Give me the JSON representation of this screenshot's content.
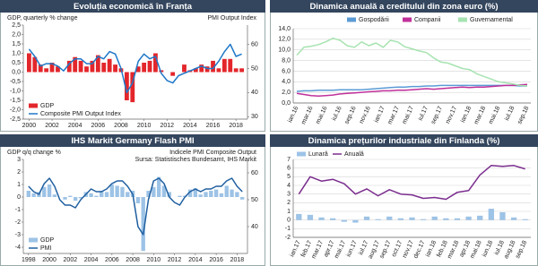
{
  "chart_data": [
    {
      "type": "combo",
      "title": "Evoluția economică în Franța",
      "ylabel": "GDP, quarterly % change",
      "y2label": "PMI Output Index",
      "legend": "lower left",
      "x": [
        2000,
        2000.5,
        2001,
        2001.5,
        2002,
        2002.5,
        2003,
        2003.5,
        2004,
        2004.5,
        2005,
        2005.5,
        2006,
        2006.5,
        2007,
        2007.5,
        2008,
        2008.5,
        2009,
        2009.5,
        2010,
        2010.5,
        2011,
        2011.5,
        2012,
        2012.5,
        2013,
        2013.5,
        2014,
        2014.5,
        2015,
        2015.5,
        2016,
        2016.5,
        2017,
        2017.5,
        2018,
        2018.5
      ],
      "xlim": [
        1999.5,
        2019
      ],
      "xticks": [
        2000,
        2002,
        2004,
        2006,
        2008,
        2010,
        2012,
        2014,
        2016,
        2018
      ],
      "ylim": [
        -2.5,
        2.5
      ],
      "yticks": [
        {
          "value": 2.5,
          "label": "2,5"
        },
        {
          "value": 2,
          "label": "2,0"
        },
        {
          "value": 1.5,
          "label": "1,5"
        },
        {
          "value": 1,
          "label": "1,0"
        },
        {
          "value": 0.5,
          "label": "0,5"
        },
        {
          "value": 0,
          "label": "0,0"
        },
        {
          "value": -0.5,
          "label": "-0,5"
        },
        {
          "value": -1,
          "label": "-1,0"
        },
        {
          "value": -1.5,
          "label": "-1,5"
        },
        {
          "value": -2,
          "label": "-2,0"
        },
        {
          "value": -2.5,
          "label": "-2,5"
        }
      ],
      "y2lim": [
        29,
        68
      ],
      "y2ticks": [
        30,
        40,
        50,
        60
      ],
      "grid": false,
      "series": [
        {
          "name": "GDP",
          "type": "bar",
          "color": "#e3262b",
          "values": [
            1.0,
            0.8,
            0.4,
            0.2,
            0.5,
            0.3,
            0.0,
            0.6,
            0.8,
            0.6,
            0.3,
            0.6,
            0.9,
            0.5,
            0.7,
            0.4,
            0.2,
            -1.5,
            -1.6,
            0.3,
            0.5,
            0.6,
            1.0,
            0.1,
            0.0,
            -0.2,
            0.0,
            0.4,
            0.1,
            0.2,
            0.4,
            0.3,
            0.6,
            0.2,
            0.7,
            0.7,
            0.2,
            0.2
          ]
        },
        {
          "name": "Composite PMI Output Index",
          "type": "line",
          "axis": "y2",
          "color": "#1f78c8",
          "values": [
            58,
            55,
            51,
            52,
            52,
            51,
            49,
            52,
            54,
            54,
            52,
            52,
            55,
            54,
            57,
            56,
            50,
            40,
            44,
            53,
            56,
            54,
            55,
            48,
            45,
            44,
            47,
            48,
            49,
            50,
            51,
            50,
            50,
            53,
            57,
            60,
            55,
            56
          ]
        }
      ]
    },
    {
      "type": "line",
      "title": "Dinamica anuală a creditului din zona euro (%)",
      "legend": "top",
      "categories": [
        "ian.16",
        null,
        "mar.16",
        null,
        "mai.16",
        null,
        "iul.16",
        null,
        "sep.16",
        null,
        "nov.16",
        null,
        "ian.17",
        null,
        "mar.17",
        null,
        "mai.17",
        null,
        "iul.17",
        null,
        "sep.17",
        null,
        "nov.17",
        null,
        "ian.18",
        null,
        "mar.18",
        null,
        "mai.18",
        null,
        "iul.18",
        null,
        "sep.18"
      ],
      "ylim": [
        0,
        14
      ],
      "yticks": [
        {
          "value": 0,
          "label": "0,0"
        },
        {
          "value": 2,
          "label": "2,0"
        },
        {
          "value": 4,
          "label": "4,0"
        },
        {
          "value": 6,
          "label": "6,0"
        },
        {
          "value": 8,
          "label": "8,0"
        },
        {
          "value": 10,
          "label": "10,0"
        },
        {
          "value": 12,
          "label": "12,0"
        },
        {
          "value": 14,
          "label": "14,0"
        }
      ],
      "grid": true,
      "series": [
        {
          "name": "Gospodării",
          "type": "line",
          "color": "#5b9bd5",
          "values": [
            2.2,
            2.3,
            2.3,
            2.4,
            2.4,
            2.4,
            2.5,
            2.5,
            2.5,
            2.5,
            2.6,
            2.7,
            2.8,
            2.9,
            3.0,
            3.0,
            3.1,
            3.1,
            3.2,
            3.2,
            3.3,
            3.3,
            3.3,
            3.3,
            3.3,
            3.3,
            3.3,
            3.3,
            3.3,
            3.3,
            3.3,
            3.2,
            3.2
          ]
        },
        {
          "name": "Companii",
          "type": "line",
          "color": "#c0309a",
          "values": [
            1.8,
            1.6,
            1.4,
            1.3,
            1.4,
            1.5,
            1.7,
            1.8,
            1.9,
            2.0,
            2.1,
            2.2,
            2.3,
            2.3,
            2.4,
            2.4,
            2.5,
            2.6,
            2.7,
            2.6,
            2.7,
            2.8,
            2.9,
            3.0,
            2.9,
            3.0,
            3.0,
            3.1,
            3.2,
            3.3,
            3.3,
            3.4,
            3.5
          ]
        },
        {
          "name": "Guvernamental",
          "type": "line",
          "color": "#a6e3b0",
          "values": [
            9.0,
            10.5,
            10.7,
            11.0,
            11.5,
            12.2,
            11.8,
            10.8,
            10.5,
            11.5,
            10.8,
            11.3,
            10.5,
            11.8,
            11.5,
            10.6,
            10.2,
            9.8,
            9.5,
            8.5,
            7.7,
            7.5,
            7.0,
            6.5,
            6.3,
            5.5,
            5.0,
            4.5,
            4.0,
            3.8,
            3.6,
            3.3,
            3.2
          ]
        }
      ]
    },
    {
      "type": "combo",
      "title": "IHS Markit Germany Flash PMI",
      "ylabel": "GDP q/q change %",
      "y2label": "Indicele PMI Composite Output",
      "note": "Sursa: Statistisches Bundesamt,  IHS Markit",
      "legend": "lower left",
      "x": [
        1998,
        1998.5,
        1999,
        1999.5,
        2000,
        2000.5,
        2001,
        2001.5,
        2002,
        2002.5,
        2003,
        2003.5,
        2004,
        2004.5,
        2005,
        2005.5,
        2006,
        2006.5,
        2007,
        2007.5,
        2008,
        2008.5,
        2009,
        2009.5,
        2010,
        2010.5,
        2011,
        2011.5,
        2012,
        2012.5,
        2013,
        2013.5,
        2014,
        2014.5,
        2015,
        2015.5,
        2016,
        2016.5,
        2017,
        2017.5,
        2018,
        2018.5
      ],
      "xlim": [
        1997.5,
        2019
      ],
      "xticks": [
        1998,
        2000,
        2002,
        2004,
        2006,
        2008,
        2010,
        2012,
        2014,
        2016,
        2018
      ],
      "ylim": [
        -4.5,
        3
      ],
      "yticks": [
        3,
        2,
        1,
        0,
        -1,
        -2,
        -3,
        -4
      ],
      "y2lim": [
        30,
        65
      ],
      "y2ticks": [
        40,
        50,
        60
      ],
      "grid": false,
      "series": [
        {
          "name": "GDP",
          "type": "bar",
          "color": "#9dc3e6",
          "values": [
            0.5,
            0.3,
            0.4,
            0.8,
            1.0,
            0.2,
            0.0,
            -0.2,
            0.1,
            -0.3,
            -0.1,
            0.4,
            0.3,
            0.1,
            0.5,
            0.4,
            1.0,
            0.9,
            0.8,
            0.4,
            0.5,
            -0.5,
            -4.3,
            0.5,
            0.8,
            1.6,
            0.9,
            0.4,
            0.0,
            0.1,
            0.1,
            0.6,
            0.7,
            0.2,
            0.4,
            0.5,
            0.6,
            0.3,
            0.9,
            0.6,
            0.4,
            -0.2
          ]
        },
        {
          "name": "PMI",
          "type": "line",
          "axis": "y2",
          "color": "#1f5fa0",
          "values": [
            55,
            53,
            52,
            56,
            58,
            55,
            50,
            48,
            48,
            47,
            50,
            52,
            54,
            53,
            53,
            54,
            56,
            57,
            57,
            55,
            52,
            40,
            37,
            50,
            57,
            58,
            56,
            51,
            49,
            48,
            51,
            53,
            54,
            53,
            54,
            54,
            55,
            55,
            57,
            58,
            55,
            53
          ]
        }
      ]
    },
    {
      "type": "combo",
      "title": "Dinamica prețurilor industriale din Finlanda (%)",
      "legend": "upper left",
      "categories": [
        "ian.17",
        "feb.17",
        "mar.17",
        "apr.17",
        "mai.17",
        "iun.17",
        "iul.17",
        "aug.17",
        "sep.17",
        "oct.17",
        "nov.17",
        "dec.17",
        "ian.18",
        "feb.18",
        "mar.18",
        "apr.18",
        "mai.18",
        "iun.18",
        "iul.18",
        "aug.18",
        "sep.18"
      ],
      "ylim": [
        -2,
        7
      ],
      "yticks": [
        -2,
        -1,
        0,
        1,
        2,
        3,
        4,
        5,
        6,
        7
      ],
      "grid": true,
      "series": [
        {
          "name": "Lunară",
          "type": "bar",
          "color": "#9dc3e6",
          "values": [
            0.7,
            0.6,
            0.3,
            0.2,
            -0.2,
            -0.3,
            0.4,
            0.1,
            0.4,
            0.2,
            0.3,
            0.1,
            0.4,
            0.2,
            0.2,
            0.4,
            0.5,
            1.3,
            0.9,
            0.3,
            0.1
          ]
        },
        {
          "name": "Anuală",
          "type": "line",
          "color": "#7b2d8e",
          "values": [
            3.0,
            5.0,
            4.5,
            4.7,
            4.2,
            3.0,
            3.6,
            2.8,
            3.5,
            3.0,
            2.9,
            2.5,
            2.6,
            2.4,
            3.2,
            3.4,
            5.2,
            6.3,
            6.2,
            6.3,
            5.9
          ]
        }
      ]
    }
  ]
}
